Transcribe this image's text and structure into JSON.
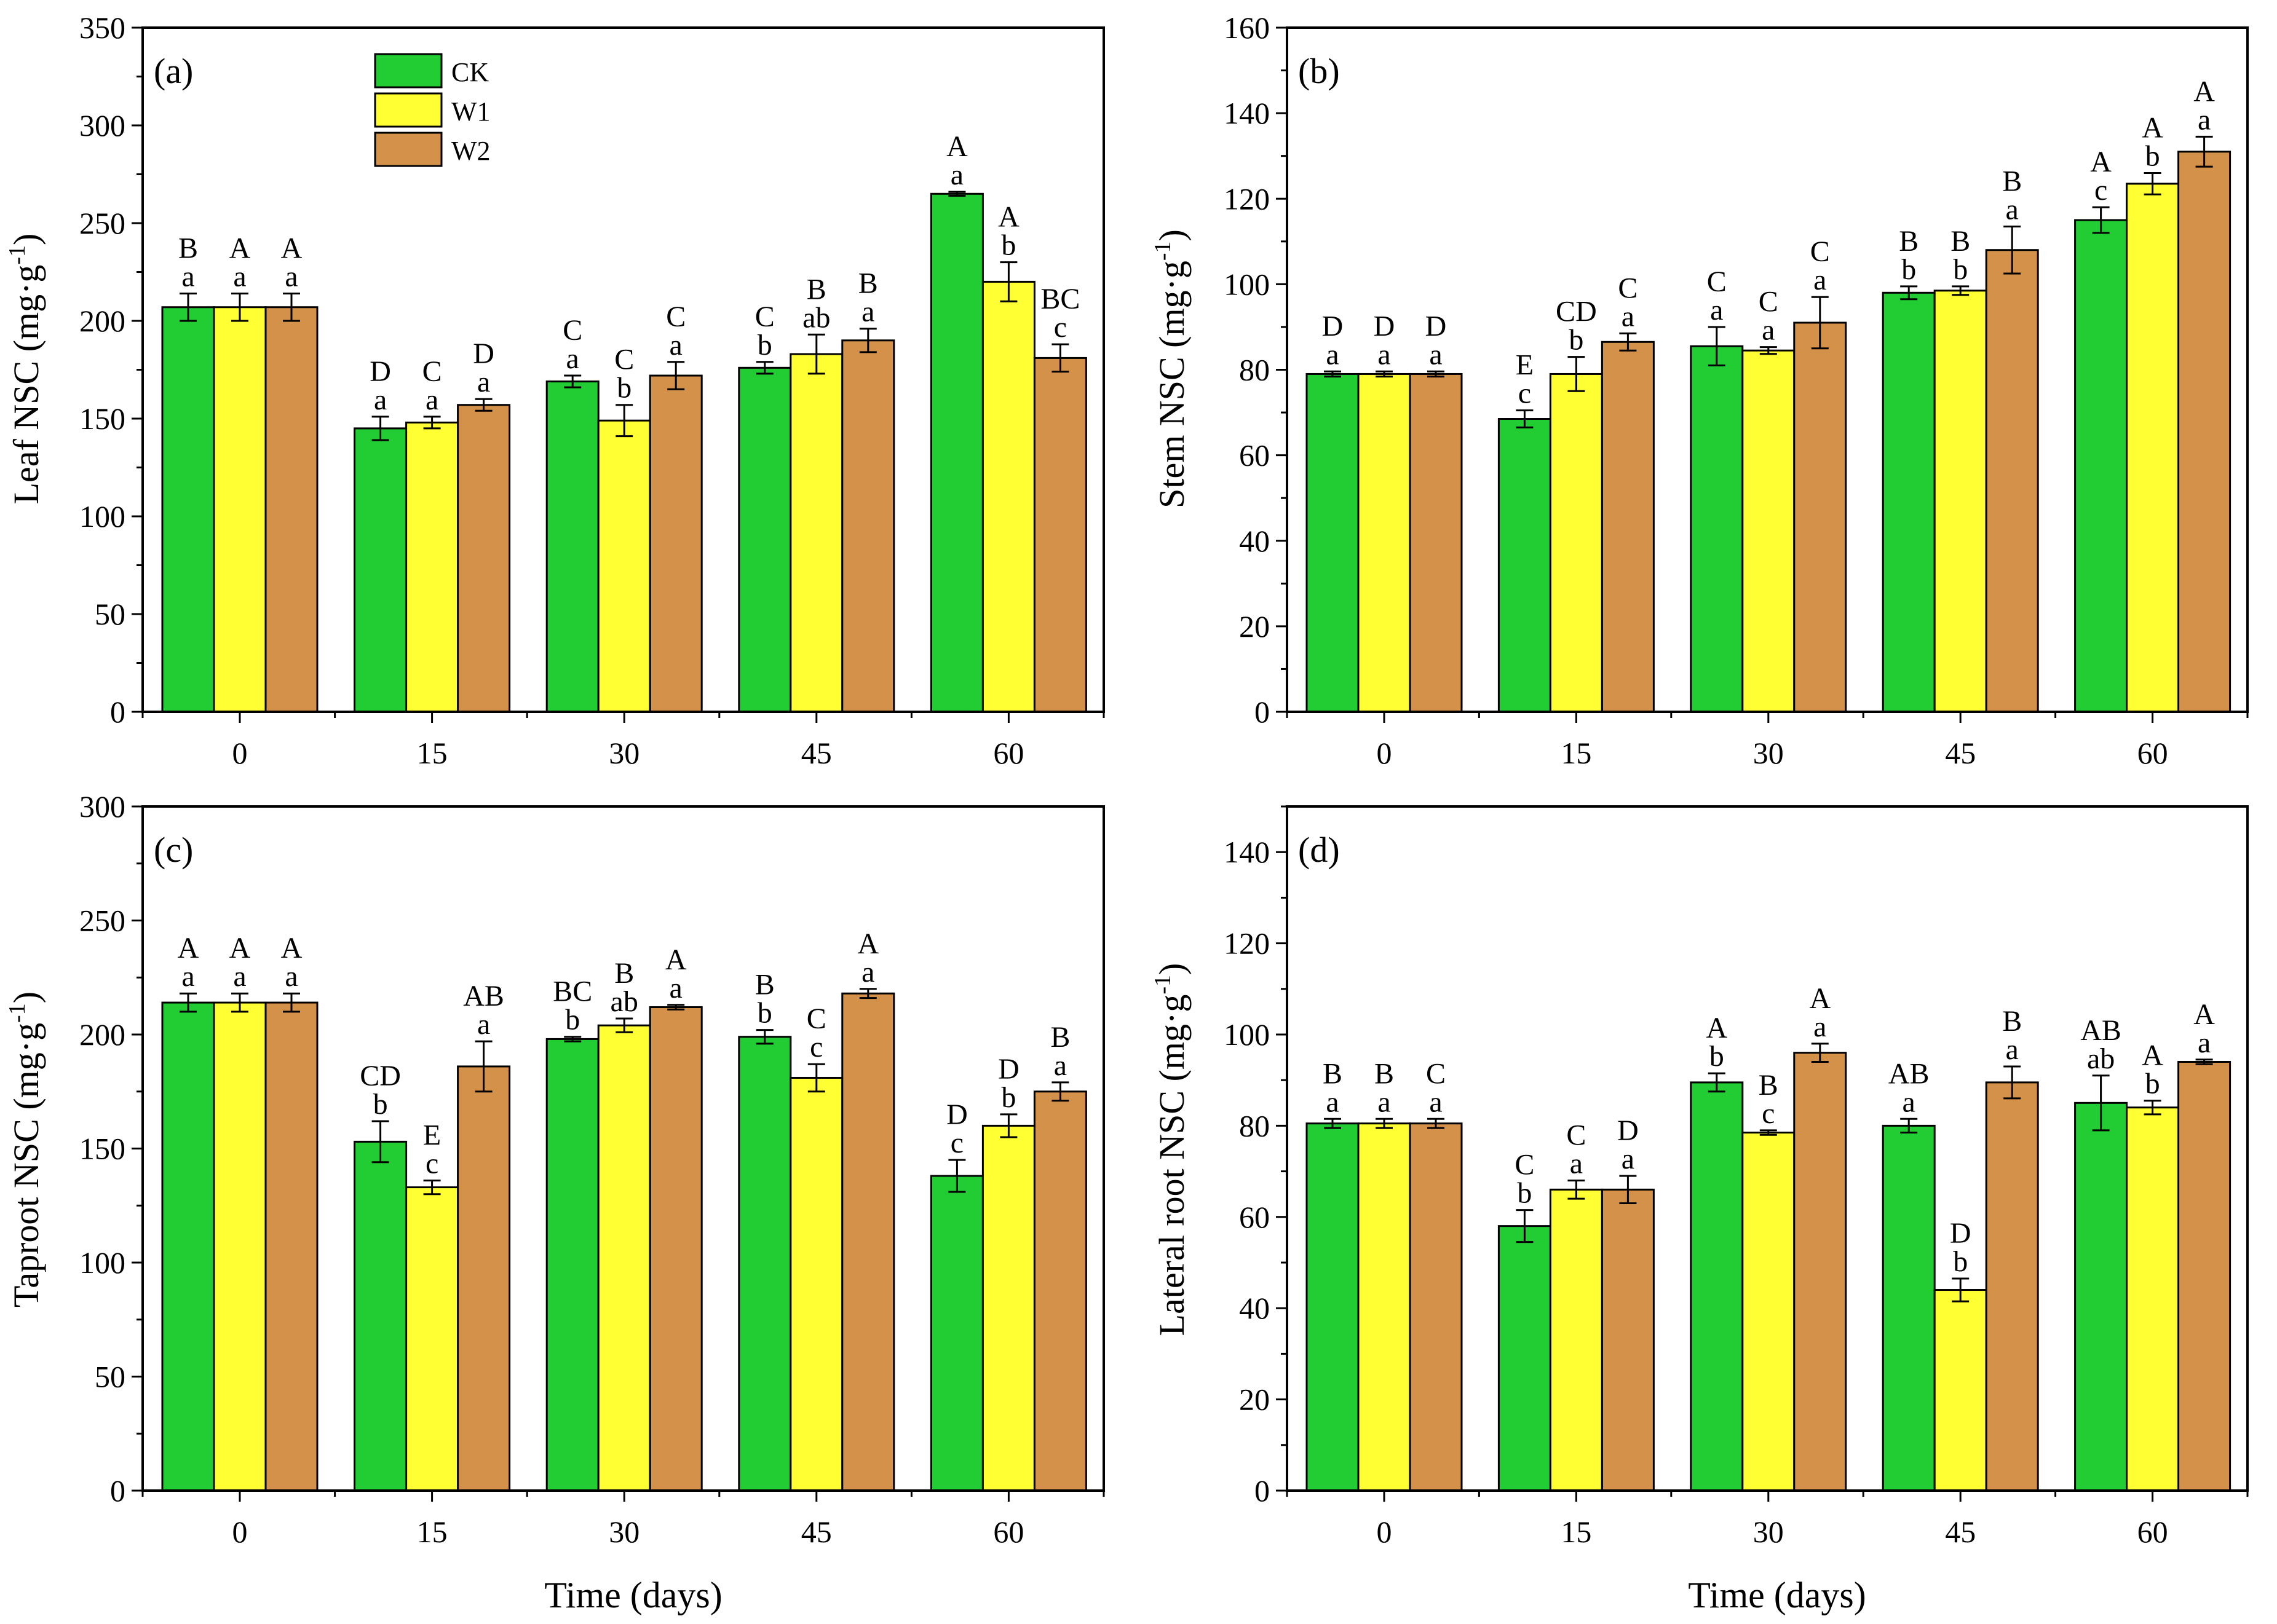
{
  "figure": {
    "xlabel": "Time (days)",
    "legend": [
      {
        "name": "CK",
        "color": "#22cc33"
      },
      {
        "name": "W1",
        "color": "#ffff33"
      },
      {
        "name": "W2",
        "color": "#d4914a"
      }
    ],
    "series_colors": [
      "#22cc33",
      "#ffff33",
      "#d4914a"
    ]
  },
  "chart_data": [
    {
      "type": "bar",
      "panel": "(a)",
      "ylabel_main": "Leaf  NSC (mg·g",
      "ylabel_sup": "-1",
      "ylabel_close": ")",
      "xlabel": "Time (days)",
      "ylim": [
        0,
        350
      ],
      "yticks": [
        0,
        50,
        100,
        150,
        200,
        250,
        300,
        350
      ],
      "categories": [
        "0",
        "15",
        "30",
        "45",
        "60"
      ],
      "legend_position": "top-left",
      "series": [
        {
          "name": "CK",
          "values": [
            207,
            145,
            169,
            176,
            265
          ],
          "errors": [
            7,
            6,
            3,
            3,
            1
          ],
          "upper": [
            "B",
            "D",
            "C",
            "C",
            "A"
          ],
          "lower": [
            "a",
            "a",
            "a",
            "b",
            "a"
          ]
        },
        {
          "name": "W1",
          "values": [
            207,
            148,
            149,
            183,
            220
          ],
          "errors": [
            7,
            3,
            8,
            10,
            10
          ],
          "upper": [
            "A",
            "C",
            "C",
            "B",
            "A"
          ],
          "lower": [
            "a",
            "a",
            "b",
            "ab",
            "b"
          ]
        },
        {
          "name": "W2",
          "values": [
            207,
            157,
            172,
            190,
            181
          ],
          "errors": [
            7,
            3,
            7,
            6,
            7
          ],
          "upper": [
            "A",
            "D",
            "C",
            "B",
            "BC"
          ],
          "lower": [
            "a",
            "a",
            "a",
            "a",
            "c"
          ]
        }
      ]
    },
    {
      "type": "bar",
      "panel": "(b)",
      "ylabel_main": "Stem NSC (mg·g",
      "ylabel_sup": "-1",
      "ylabel_close": ")",
      "xlabel": "",
      "ylim": [
        0,
        160
      ],
      "yticks": [
        0,
        20,
        40,
        60,
        80,
        100,
        120,
        140,
        160
      ],
      "categories": [
        "0",
        "15",
        "30",
        "45",
        "60"
      ],
      "series": [
        {
          "name": "CK",
          "values": [
            79,
            68.5,
            85.5,
            98,
            115
          ],
          "errors": [
            0.6,
            2,
            4.5,
            1.5,
            3
          ],
          "upper": [
            "D",
            "E",
            "C",
            "B",
            "A"
          ],
          "lower": [
            "a",
            "c",
            "a",
            "b",
            "c"
          ]
        },
        {
          "name": "W1",
          "values": [
            79,
            79,
            84.5,
            98.5,
            123.5
          ],
          "errors": [
            0.6,
            4,
            0.8,
            1,
            2.5
          ],
          "upper": [
            "D",
            "CD",
            "C",
            "B",
            "A"
          ],
          "lower": [
            "a",
            "b",
            "a",
            "b",
            "b"
          ]
        },
        {
          "name": "W2",
          "values": [
            79,
            86.5,
            91,
            108,
            131
          ],
          "errors": [
            0.6,
            2,
            6,
            5.5,
            3.5
          ],
          "upper": [
            "D",
            "C",
            "C",
            "B",
            "A"
          ],
          "lower": [
            "a",
            "a",
            "a",
            "a",
            "a"
          ]
        }
      ]
    },
    {
      "type": "bar",
      "panel": "(c)",
      "ylabel_main": "Taproot  NSC (mg·g",
      "ylabel_sup": "-1",
      "ylabel_close": ")",
      "xlabel": "Time (days)",
      "ylim": [
        0,
        300
      ],
      "yticks": [
        0,
        50,
        100,
        150,
        200,
        250,
        300
      ],
      "categories": [
        "0",
        "15",
        "30",
        "45",
        "60"
      ],
      "series": [
        {
          "name": "CK",
          "values": [
            214,
            153,
            198,
            199,
            138
          ],
          "errors": [
            4,
            9,
            1,
            3,
            7
          ],
          "upper": [
            "A",
            "CD",
            "BC",
            "B",
            "D"
          ],
          "lower": [
            "a",
            "b",
            "b",
            "b",
            "c"
          ]
        },
        {
          "name": "W1",
          "values": [
            214,
            133,
            204,
            181,
            160
          ],
          "errors": [
            4,
            3,
            3,
            6,
            5
          ],
          "upper": [
            "A",
            "E",
            "B",
            "C",
            "D"
          ],
          "lower": [
            "a",
            "c",
            "ab",
            "c",
            "b"
          ]
        },
        {
          "name": "W2",
          "values": [
            214,
            186,
            212,
            218,
            175
          ],
          "errors": [
            4,
            11,
            1,
            2,
            4
          ],
          "upper": [
            "A",
            "AB",
            "A",
            "A",
            "B"
          ],
          "lower": [
            "a",
            "a",
            "a",
            "a",
            "a"
          ]
        }
      ]
    },
    {
      "type": "bar",
      "panel": "(d)",
      "ylabel_main": "Lateral root  NSC (mg·g",
      "ylabel_sup": "-1",
      "ylabel_close": ")",
      "xlabel": "Time (days)",
      "ylim": [
        0,
        150
      ],
      "yticks": [
        0,
        20,
        40,
        60,
        80,
        100,
        120,
        140
      ],
      "categories": [
        "0",
        "15",
        "30",
        "45",
        "60"
      ],
      "series": [
        {
          "name": "CK",
          "values": [
            80.5,
            58,
            89.5,
            80,
            85
          ],
          "errors": [
            1,
            3.5,
            2,
            1.5,
            6
          ],
          "upper": [
            "B",
            "C",
            "A",
            "AB",
            "AB"
          ],
          "lower": [
            "a",
            "b",
            "b",
            "a",
            "ab"
          ]
        },
        {
          "name": "W1",
          "values": [
            80.5,
            66,
            78.5,
            44,
            84
          ],
          "errors": [
            1,
            2,
            0.5,
            2.5,
            1.5
          ],
          "upper": [
            "B",
            "C",
            "B",
            "D",
            "A"
          ],
          "lower": [
            "a",
            "a",
            "c",
            "b",
            "b"
          ]
        },
        {
          "name": "W2",
          "values": [
            80.5,
            66,
            96,
            89.5,
            94
          ],
          "errors": [
            1,
            3,
            2,
            3.5,
            0.5
          ],
          "upper": [
            "C",
            "D",
            "A",
            "B",
            "A"
          ],
          "lower": [
            "a",
            "a",
            "a",
            "a",
            "a"
          ]
        }
      ]
    }
  ]
}
